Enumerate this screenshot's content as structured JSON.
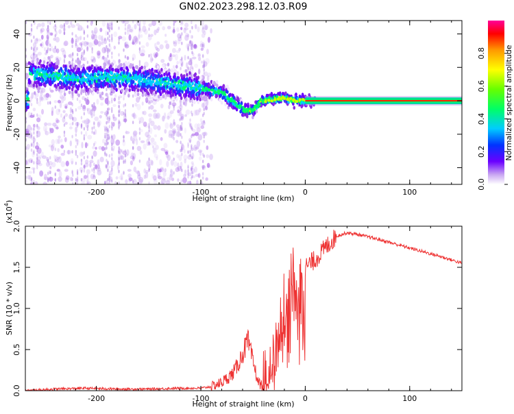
{
  "title": "GN02.2023.298.12.03.R09",
  "chart_data": [
    {
      "type": "heatmap",
      "xlabel": "Height of straight line (km)",
      "ylabel": "Frequency (Hz)",
      "xlim": [
        -268,
        150
      ],
      "ylim": [
        -50,
        48
      ],
      "xticks": [
        -200,
        -100,
        0,
        100
      ],
      "yticks": [
        40,
        20,
        0,
        -20,
        -40
      ],
      "ridge": [
        {
          "x": -265,
          "y": 16
        },
        {
          "x": -240,
          "y": 15
        },
        {
          "x": -215,
          "y": 13
        },
        {
          "x": -190,
          "y": 14
        },
        {
          "x": -165,
          "y": 13
        },
        {
          "x": -140,
          "y": 11
        },
        {
          "x": -115,
          "y": 9
        },
        {
          "x": -95,
          "y": 7
        },
        {
          "x": -80,
          "y": 5
        },
        {
          "x": -70,
          "y": 0
        },
        {
          "x": -60,
          "y": -5
        },
        {
          "x": -50,
          "y": -6
        },
        {
          "x": -42,
          "y": 0
        },
        {
          "x": -30,
          "y": 1
        },
        {
          "x": -20,
          "y": 2
        },
        {
          "x": -10,
          "y": 0
        },
        {
          "x": 0,
          "y": 0
        },
        {
          "x": 150,
          "y": 0
        }
      ],
      "colorbar": {
        "label": "Normalized spectral amplitude",
        "range": [
          0,
          1
        ],
        "ticks": [
          0.0,
          0.2,
          0.4,
          0.6,
          0.8
        ]
      }
    },
    {
      "type": "line",
      "xlabel": "Height of straight line (km)",
      "ylabel": "SNR (10 * v/v)",
      "yscale_label": "(x10",
      "yscale_exp": "4",
      "yscale_close": ")",
      "xlim": [
        -268,
        150
      ],
      "ylim": [
        0,
        2.0
      ],
      "xticks": [
        -200,
        -100,
        0,
        100
      ],
      "yticks": [
        0.0,
        0.5,
        1.0,
        1.5,
        2.0
      ],
      "color": "#ee3333",
      "series": [
        {
          "x": [
            -268,
            -240,
            -210,
            -180,
            -150,
            -120,
            -100,
            -90,
            -80,
            -70,
            -65,
            -60,
            -55,
            -50,
            -45,
            -40,
            -35,
            -30,
            -25,
            -20,
            -15,
            -10,
            -5,
            0,
            10,
            20,
            30,
            40,
            50,
            70,
            90,
            110,
            130,
            150
          ],
          "y": [
            0.0,
            0.02,
            0.03,
            0.02,
            0.02,
            0.03,
            0.03,
            0.05,
            0.1,
            0.2,
            0.3,
            0.45,
            0.6,
            0.35,
            0.1,
            0.05,
            0.1,
            0.4,
            0.8,
            1.1,
            1.3,
            1.45,
            1.3,
            1.5,
            1.6,
            1.75,
            1.88,
            1.92,
            1.9,
            1.84,
            1.77,
            1.7,
            1.63,
            1.55
          ]
        }
      ]
    }
  ]
}
